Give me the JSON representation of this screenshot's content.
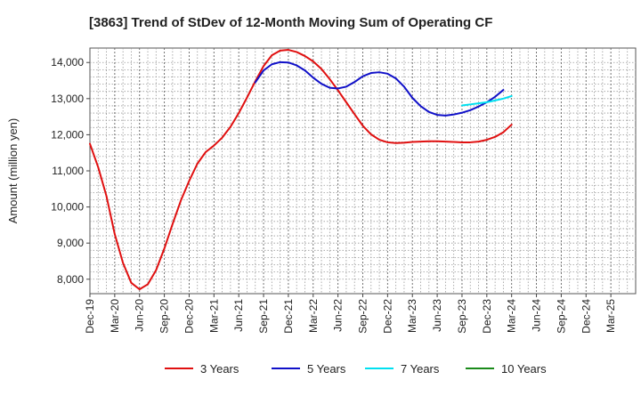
{
  "chart_data": {
    "type": "line",
    "title": "[3863]  Trend of StDev of 12-Month Moving Sum of Operating CF",
    "xlabel": "",
    "ylabel": "Amount (million yen)",
    "ylim": [
      7600,
      14400
    ],
    "yticks": [
      8000,
      9000,
      10000,
      11000,
      12000,
      13000,
      14000
    ],
    "ytick_labels": [
      "8,000",
      "9,000",
      "10,000",
      "11,000",
      "12,000",
      "13,000",
      "14,000"
    ],
    "x_range": [
      0,
      66
    ],
    "x_ticks": [
      {
        "i": 0,
        "label": "Dec-19"
      },
      {
        "i": 3,
        "label": "Mar-20"
      },
      {
        "i": 6,
        "label": "Jun-20"
      },
      {
        "i": 9,
        "label": "Sep-20"
      },
      {
        "i": 12,
        "label": "Dec-20"
      },
      {
        "i": 15,
        "label": "Mar-21"
      },
      {
        "i": 18,
        "label": "Jun-21"
      },
      {
        "i": 21,
        "label": "Sep-21"
      },
      {
        "i": 24,
        "label": "Dec-21"
      },
      {
        "i": 27,
        "label": "Mar-22"
      },
      {
        "i": 30,
        "label": "Jun-22"
      },
      {
        "i": 33,
        "label": "Sep-22"
      },
      {
        "i": 36,
        "label": "Dec-22"
      },
      {
        "i": 39,
        "label": "Mar-23"
      },
      {
        "i": 42,
        "label": "Jun-23"
      },
      {
        "i": 45,
        "label": "Sep-23"
      },
      {
        "i": 48,
        "label": "Dec-23"
      },
      {
        "i": 51,
        "label": "Mar-24"
      },
      {
        "i": 54,
        "label": "Jun-24"
      },
      {
        "i": 57,
        "label": "Sep-24"
      },
      {
        "i": 60,
        "label": "Dec-24"
      },
      {
        "i": 63,
        "label": "Mar-25"
      }
    ],
    "series": [
      {
        "name": "3 Years",
        "color": "#e01010",
        "start": 0,
        "values": [
          11750,
          11100,
          10300,
          9250,
          8450,
          7900,
          7720,
          7860,
          8250,
          8850,
          9530,
          10180,
          10720,
          11200,
          11520,
          11700,
          11920,
          12220,
          12600,
          13030,
          13480,
          13900,
          14200,
          14330,
          14350,
          14290,
          14180,
          14030,
          13820,
          13540,
          13230,
          12900,
          12570,
          12250,
          12010,
          11860,
          11790,
          11770,
          11780,
          11800,
          11810,
          11820,
          11820,
          11810,
          11800,
          11790,
          11790,
          11810,
          11860,
          11940,
          12070,
          12280
        ]
      },
      {
        "name": "5 Years",
        "color": "#1010c8",
        "start": 20,
        "values": [
          13450,
          13780,
          13950,
          14010,
          14000,
          13920,
          13780,
          13580,
          13410,
          13300,
          13280,
          13330,
          13460,
          13620,
          13710,
          13730,
          13690,
          13560,
          13330,
          13020,
          12790,
          12630,
          12550,
          12530,
          12560,
          12610,
          12680,
          12780,
          12900,
          13050,
          13240
        ]
      },
      {
        "name": "7 Years",
        "color": "#00e0f0",
        "start": 45,
        "values": [
          12810,
          12840,
          12870,
          12900,
          12950,
          13000,
          13070
        ]
      },
      {
        "name": "10 Years",
        "color": "#1a8a1a",
        "start": 0,
        "values": []
      }
    ]
  }
}
